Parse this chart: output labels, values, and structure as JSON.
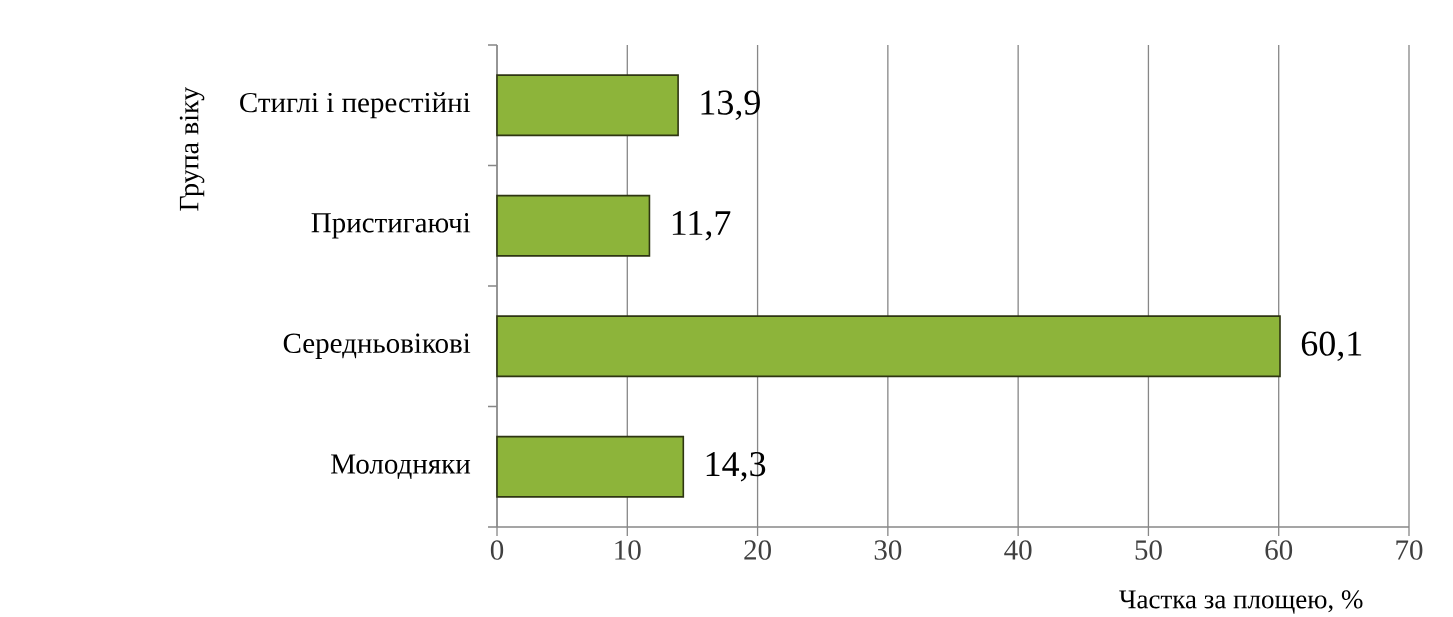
{
  "chart_data": {
    "type": "bar",
    "orientation": "horizontal",
    "categories": [
      "Стиглі і перестійні",
      "Пристигаючі",
      "Середньовікові",
      "Молодняки"
    ],
    "values": [
      13.9,
      11.7,
      60.1,
      14.3
    ],
    "value_labels": [
      "13,9",
      "11,7",
      "60,1",
      "14,3"
    ],
    "color": "#8db43a",
    "xlim": [
      0,
      70
    ],
    "xticks": [
      0,
      10,
      20,
      30,
      40,
      50,
      60,
      70
    ],
    "xlabel": "Частка за площею, %",
    "ylabel": "Група віку",
    "grid": "x"
  }
}
